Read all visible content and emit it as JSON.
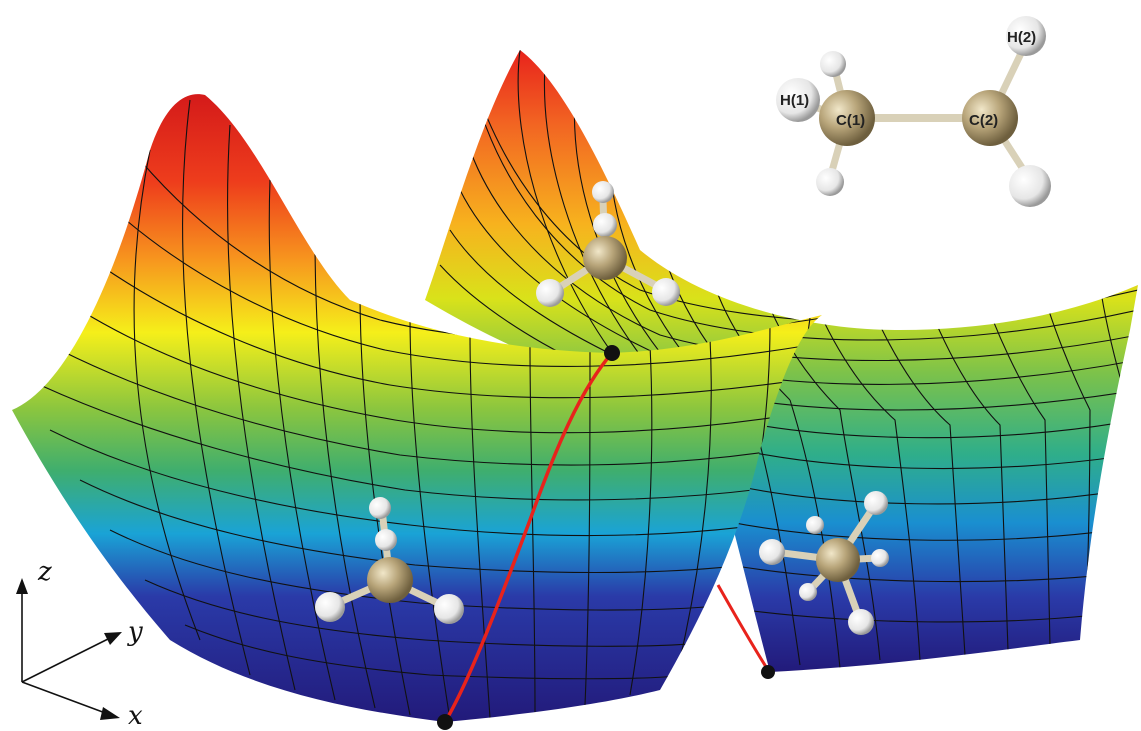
{
  "molecule_labels": {
    "h1": "H(1)",
    "c1": "C(1)",
    "c2": "C(2)",
    "h2": "H(2)"
  },
  "axes": {
    "z": "z",
    "y": "y",
    "x": "x"
  },
  "colors": {
    "surface_top": "#e8231c",
    "surface_mid_orange": "#f7931e",
    "surface_yellow": "#f5ef1a",
    "surface_green": "#6cc04a",
    "surface_cyan": "#1aa3d6",
    "surface_blue": "#2a3aa8",
    "surface_bottom": "#221a7a",
    "reaction_path": "#e8231c",
    "carbon_atom": "#b8a57a",
    "hydrogen_atom": "#f4f4f4",
    "grid_line": "#111111"
  },
  "icons": {
    "ethane_molecule": "ethane-structure",
    "methyl_fragment": "methyl-ball-and-stick"
  }
}
